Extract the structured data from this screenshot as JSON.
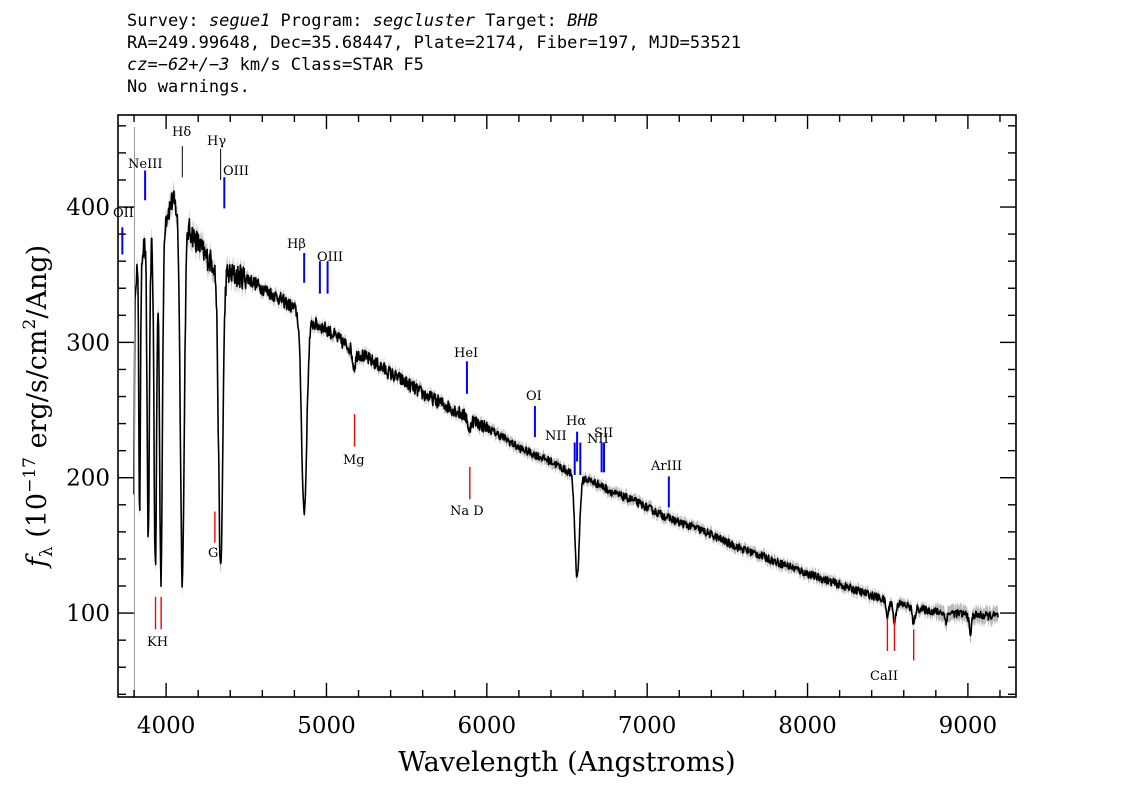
{
  "header": {
    "line1": {
      "survey_label": "Survey: ",
      "survey": "segue1",
      "program_label": " Program: ",
      "program": "segcluster",
      "target_label": " Target: ",
      "target": "BHB"
    },
    "line2": "RA=249.99648, Dec=35.68447, Plate=2174, Fiber=197, MJD=53521",
    "line3": {
      "cz_label": "cz",
      "cz_value": "=−62+/−3",
      "rest": " km/s Class=STAR F5"
    },
    "line4": "No warnings."
  },
  "chart_data": {
    "type": "line",
    "xlabel": "Wavelength (Angstroms)",
    "ylabel": "f_λ (10^-17 erg/s/cm^2/Ang)",
    "xlim": [
      3700,
      9300
    ],
    "ylim": [
      38,
      468
    ],
    "x_ticks": [
      4000,
      5000,
      6000,
      7000,
      8000,
      9000
    ],
    "y_ticks": [
      100,
      200,
      300,
      400
    ],
    "grid": false,
    "spectrum": {
      "continuum": [
        [
          3800,
          345
        ],
        [
          3850,
          368
        ],
        [
          3900,
          375
        ],
        [
          3950,
          385
        ],
        [
          4000,
          393
        ],
        [
          4040,
          405
        ],
        [
          4100,
          392
        ],
        [
          4150,
          382
        ],
        [
          4200,
          373
        ],
        [
          4250,
          363
        ],
        [
          4300,
          358
        ],
        [
          4400,
          350
        ],
        [
          4500,
          348
        ],
        [
          4600,
          340
        ],
        [
          4700,
          333
        ],
        [
          4800,
          325
        ],
        [
          4900,
          315
        ],
        [
          5000,
          310
        ],
        [
          5100,
          300
        ],
        [
          5200,
          292
        ],
        [
          5300,
          285
        ],
        [
          5400,
          277
        ],
        [
          5500,
          270
        ],
        [
          5600,
          262
        ],
        [
          5700,
          256
        ],
        [
          5800,
          250
        ],
        [
          5900,
          243
        ],
        [
          6000,
          237
        ],
        [
          6100,
          230
        ],
        [
          6200,
          222
        ],
        [
          6300,
          217
        ],
        [
          6400,
          212
        ],
        [
          6500,
          205
        ],
        [
          6600,
          200
        ],
        [
          6700,
          195
        ],
        [
          6800,
          188
        ],
        [
          6900,
          184
        ],
        [
          7000,
          178
        ],
        [
          7100,
          172
        ],
        [
          7200,
          167
        ],
        [
          7300,
          163
        ],
        [
          7400,
          158
        ],
        [
          7500,
          152
        ],
        [
          7600,
          147
        ],
        [
          7700,
          143
        ],
        [
          7800,
          138
        ],
        [
          7900,
          134
        ],
        [
          8000,
          129
        ],
        [
          8100,
          125
        ],
        [
          8200,
          121
        ],
        [
          8300,
          117
        ],
        [
          8400,
          113
        ],
        [
          8500,
          109
        ],
        [
          8600,
          106
        ],
        [
          8700,
          103
        ],
        [
          8800,
          101
        ],
        [
          8900,
          100
        ],
        [
          9000,
          99
        ],
        [
          9100,
          98
        ],
        [
          9190,
          98
        ]
      ],
      "absorption": [
        {
          "x": 3798,
          "depth": 170,
          "width": 4
        },
        {
          "x": 3835,
          "depth": 185,
          "width": 5
        },
        {
          "x": 3889,
          "depth": 220,
          "width": 7
        },
        {
          "x": 3933,
          "depth": 250,
          "width": 8
        },
        {
          "x": 3968,
          "depth": 260,
          "width": 9
        },
        {
          "x": 4101,
          "depth": 265,
          "width": 12
        },
        {
          "x": 4340,
          "depth": 225,
          "width": 13
        },
        {
          "x": 4861,
          "depth": 145,
          "width": 16
        },
        {
          "x": 5172,
          "depth": 12,
          "width": 10
        },
        {
          "x": 5890,
          "depth": 12,
          "width": 6
        },
        {
          "x": 6563,
          "depth": 75,
          "width": 14
        },
        {
          "x": 8498,
          "depth": 12,
          "width": 8
        },
        {
          "x": 8542,
          "depth": 15,
          "width": 8
        },
        {
          "x": 8662,
          "depth": 12,
          "width": 8
        },
        {
          "x": 8863,
          "depth": 6,
          "width": 8
        },
        {
          "x": 9015,
          "depth": 15,
          "width": 7
        }
      ]
    },
    "emission_lines": [
      {
        "label": "OII",
        "x": 3727,
        "y1": 365,
        "y2": 385
      },
      {
        "label": "NeIII",
        "x": 3869,
        "y1": 405,
        "y2": 427
      },
      {
        "label": "OIII",
        "x": 4363,
        "y1": 399,
        "y2": 422
      },
      {
        "label": "Hβ",
        "x": 4861,
        "y1": 344,
        "y2": 366
      },
      {
        "label": "OIII",
        "x": 4959,
        "y1": 336,
        "y2": 360
      },
      {
        "label": "OIII",
        "x": 5007,
        "y1": 336,
        "y2": 360
      },
      {
        "label": "HeI",
        "x": 5876,
        "y1": 262,
        "y2": 286
      },
      {
        "label": "OI",
        "x": 6300,
        "y1": 230,
        "y2": 253
      },
      {
        "label": "NII",
        "x": 6548,
        "y1": 202,
        "y2": 226
      },
      {
        "label": "Hα",
        "x": 6563,
        "y1": 212,
        "y2": 234
      },
      {
        "label": "NII",
        "x": 6583,
        "y1": 202,
        "y2": 226
      },
      {
        "label": "SII",
        "x": 6716,
        "y1": 204,
        "y2": 226
      },
      {
        "label": "SII",
        "x": 6731,
        "y1": 204,
        "y2": 226
      },
      {
        "label": "ArIII",
        "x": 7135,
        "y1": 178,
        "y2": 201
      }
    ],
    "absorption_lines": [
      {
        "label": "Hδ",
        "x": 4101,
        "y1": 422,
        "y2": 445
      },
      {
        "label": "Hγ",
        "x": 4340,
        "y1": 420,
        "y2": 443
      },
      {
        "label": "K",
        "x": 3934,
        "y1": 88,
        "y2": 112
      },
      {
        "label": "H",
        "x": 3969,
        "y1": 88,
        "y2": 112
      },
      {
        "label": "G",
        "x": 4304,
        "y1": 152,
        "y2": 175
      },
      {
        "label": "Mg",
        "x": 5175,
        "y1": 223,
        "y2": 247
      },
      {
        "label": "Na D",
        "x": 5894,
        "y1": 184,
        "y2": 208
      },
      {
        "label": "CaII",
        "x": 8498,
        "y1": 72,
        "y2": 96
      },
      {
        "label": "CaII",
        "x": 8542,
        "y1": 72,
        "y2": 96
      },
      {
        "label": "CaII",
        "x": 8662,
        "y1": 65,
        "y2": 88
      }
    ],
    "label_texts": {
      "OII": "OII",
      "NeIII": "NeIII",
      "Hdelta": "Hδ",
      "Hgamma": "Hγ",
      "OIII_a": "OIII",
      "Hbeta": "Hβ",
      "OIII_b": "OIII",
      "HeI": "HeI",
      "OI": "OI",
      "NII_a": "NII",
      "Halpha": "Hα",
      "NII_b": "NII",
      "SII": "SII",
      "ArIII": "ArIII",
      "KH": "KH",
      "G": "G",
      "Mg": "Mg",
      "NaD": "Na D",
      "CaII": "CaII"
    },
    "colors": {
      "spectrum": "#000000",
      "error": "#bbbbbb",
      "emission": "#0000ff",
      "absorption": "#ff0000",
      "balmer": "#000000",
      "axes": "#000000"
    }
  }
}
